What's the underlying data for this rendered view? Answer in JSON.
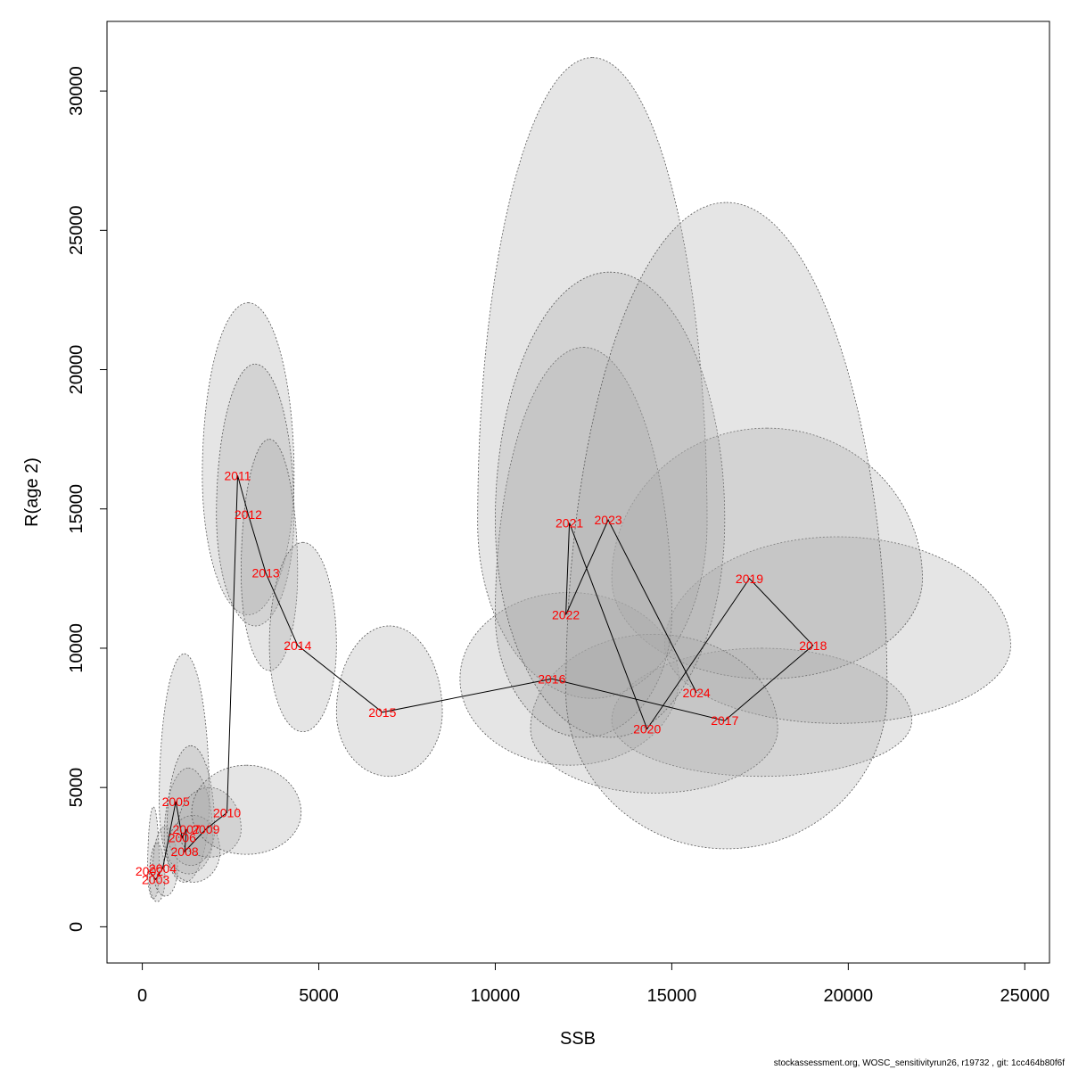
{
  "chart_data": {
    "type": "scatter",
    "xlabel": "SSB",
    "ylabel": "R(age 2)",
    "xlim": [
      -1000,
      25700
    ],
    "ylim": [
      -1300,
      32500
    ],
    "x_ticks": [
      0,
      5000,
      10000,
      15000,
      20000,
      25000
    ],
    "y_ticks": [
      0,
      5000,
      10000,
      15000,
      20000,
      25000,
      30000
    ],
    "grid": false,
    "point_label_color": "#ff0000",
    "line_color": "#000000",
    "ellipse_fill": "#a9a9a9",
    "points": [
      {
        "year": "2002",
        "ssb": 200,
        "rec": 2000,
        "ssb_range": [
          150,
          480
        ],
        "rec_range": [
          1000,
          4300
        ]
      },
      {
        "year": "2003",
        "ssb": 380,
        "rec": 1700,
        "ssb_range": [
          200,
          640
        ],
        "rec_range": [
          900,
          3000
        ]
      },
      {
        "year": "2004",
        "ssb": 580,
        "rec": 2100,
        "ssb_range": [
          300,
          1000
        ],
        "rec_range": [
          1100,
          3600
        ]
      },
      {
        "year": "2005",
        "ssb": 950,
        "rec": 4500,
        "ssb_range": [
          480,
          1900
        ],
        "rec_range": [
          1600,
          9800
        ]
      },
      {
        "year": "2006",
        "ssb": 1130,
        "rec": 3200,
        "ssb_range": [
          620,
          2000
        ],
        "rec_range": [
          1900,
          5700
        ]
      },
      {
        "year": "2007",
        "ssb": 1250,
        "rec": 3500,
        "ssb_range": [
          700,
          2050
        ],
        "rec_range": [
          2200,
          6500
        ]
      },
      {
        "year": "2008",
        "ssb": 1200,
        "rec": 2700,
        "ssb_range": [
          700,
          2200
        ],
        "rec_range": [
          1600,
          4000
        ]
      },
      {
        "year": "2009",
        "ssb": 1800,
        "rec": 3500,
        "ssb_range": [
          1000,
          2800
        ],
        "rec_range": [
          2500,
          5000
        ]
      },
      {
        "year": "2010",
        "ssb": 2400,
        "rec": 4100,
        "ssb_range": [
          1400,
          4500
        ],
        "rec_range": [
          2600,
          5800
        ]
      },
      {
        "year": "2011",
        "ssb": 2700,
        "rec": 16200,
        "ssb_range": [
          1700,
          4300
        ],
        "rec_range": [
          11200,
          22400
        ]
      },
      {
        "year": "2012",
        "ssb": 3000,
        "rec": 14800,
        "ssb_range": [
          2100,
          4300
        ],
        "rec_range": [
          10800,
          20200
        ]
      },
      {
        "year": "2013",
        "ssb": 3500,
        "rec": 12700,
        "ssb_range": [
          2800,
          4400
        ],
        "rec_range": [
          9200,
          17500
        ]
      },
      {
        "year": "2014",
        "ssb": 4400,
        "rec": 10100,
        "ssb_range": [
          3600,
          5500
        ],
        "rec_range": [
          7000,
          13800
        ]
      },
      {
        "year": "2015",
        "ssb": 6800,
        "rec": 7700,
        "ssb_range": [
          5500,
          8500
        ],
        "rec_range": [
          5400,
          10800
        ]
      },
      {
        "year": "2016",
        "ssb": 11600,
        "rec": 8900,
        "ssb_range": [
          9000,
          15200
        ],
        "rec_range": [
          5800,
          12000
        ]
      },
      {
        "year": "2017",
        "ssb": 16500,
        "rec": 7400,
        "ssb_range": [
          13300,
          21800
        ],
        "rec_range": [
          5400,
          10000
        ]
      },
      {
        "year": "2018",
        "ssb": 19000,
        "rec": 10100,
        "ssb_range": [
          14800,
          24600
        ],
        "rec_range": [
          7300,
          14000
        ]
      },
      {
        "year": "2019",
        "ssb": 17200,
        "rec": 12500,
        "ssb_range": [
          13300,
          22100
        ],
        "rec_range": [
          8900,
          17900
        ]
      },
      {
        "year": "2020",
        "ssb": 14300,
        "rec": 7100,
        "ssb_range": [
          11000,
          18000
        ],
        "rec_range": [
          4800,
          10500
        ]
      },
      {
        "year": "2021",
        "ssb": 12100,
        "rec": 14500,
        "ssb_range": [
          9500,
          16000
        ],
        "rec_range": [
          8200,
          31200
        ]
      },
      {
        "year": "2022",
        "ssb": 12000,
        "rec": 11200,
        "ssb_range": [
          10000,
          15000
        ],
        "rec_range": [
          6800,
          20800
        ]
      },
      {
        "year": "2023",
        "ssb": 13200,
        "rec": 14600,
        "ssb_range": [
          10000,
          16500
        ],
        "rec_range": [
          6800,
          23500
        ]
      },
      {
        "year": "2024",
        "ssb": 15700,
        "rec": 8400,
        "ssb_range": [
          12000,
          21100
        ],
        "rec_range": [
          2800,
          26000
        ]
      }
    ]
  },
  "footer": "stockassessment.org, WOSC_sensitivityrun26, r19732 , git: 1cc464b80f6f"
}
